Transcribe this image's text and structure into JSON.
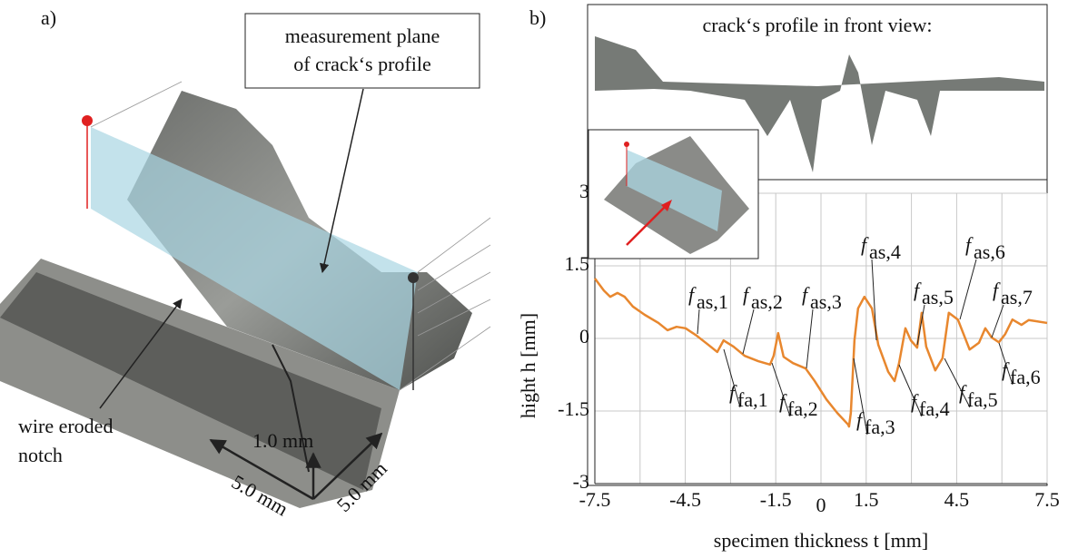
{
  "panel_a": {
    "label": "a)",
    "plane_note": [
      "measurement plane",
      "of crack‘s profile"
    ],
    "notch_note": [
      "wire eroded",
      "notch"
    ],
    "height_scale": "1.0 mm",
    "width_scale": "5.0 mm",
    "depth_scale": "5.0 mm"
  },
  "panel_b": {
    "label": "b)",
    "front_view_title": "crack‘s profile in front view:"
  },
  "chart_data": {
    "type": "line",
    "x_label": "specimen thickness t [mm]",
    "y_label": "hight h [mm]",
    "xlim": [
      -7.5,
      7.5
    ],
    "ylim": [
      -3,
      3
    ],
    "xticks": [
      -7.5,
      -4.5,
      -1.5,
      0,
      1.5,
      4.5,
      7.5
    ],
    "x_minor_grid": [
      -6,
      -3,
      3,
      6
    ],
    "yticks": [
      -3,
      -1.5,
      0,
      1.5,
      3
    ],
    "grid": true,
    "series": [
      {
        "name": "crack profile",
        "color": "#e8872e",
        "x": [
          -7.5,
          -7.2,
          -6.99,
          -6.75,
          -6.51,
          -6.24,
          -5.85,
          -5.39,
          -5.09,
          -4.79,
          -4.49,
          -4.13,
          -3.74,
          -3.44,
          -3.23,
          -2.9,
          -2.53,
          -2.08,
          -1.69,
          -1.57,
          -1.42,
          -1.24,
          -0.93,
          -0.51,
          -0.21,
          0.18,
          0.54,
          0.9,
          0.93,
          0.99,
          1.11,
          1.23,
          1.44,
          1.69,
          1.9,
          2.23,
          2.44,
          2.59,
          2.8,
          2.98,
          3.19,
          3.34,
          3.49,
          3.79,
          4.03,
          4.24,
          4.54,
          4.93,
          5.24,
          5.45,
          5.66,
          5.9,
          6.11,
          6.35,
          6.65,
          6.89,
          7.5
        ],
        "values": [
          1.24,
          0.99,
          0.86,
          0.94,
          0.86,
          0.66,
          0.49,
          0.32,
          0.17,
          0.24,
          0.21,
          0.06,
          -0.13,
          -0.28,
          -0.04,
          -0.17,
          -0.36,
          -0.47,
          -0.54,
          -0.36,
          0.11,
          -0.38,
          -0.51,
          -0.62,
          -0.88,
          -1.26,
          -1.54,
          -1.78,
          -1.82,
          -1.54,
          -0.04,
          0.62,
          0.86,
          0.62,
          -0.13,
          -0.69,
          -0.88,
          -0.51,
          0.21,
          -0.04,
          -0.19,
          0.53,
          -0.17,
          -0.66,
          -0.41,
          0.53,
          0.39,
          -0.23,
          -0.09,
          0.21,
          0.02,
          -0.08,
          0.09,
          0.39,
          0.28,
          0.38,
          0.32
        ]
      }
    ],
    "annotations": [
      {
        "symbol": "f",
        "subscript": "as,1"
      },
      {
        "symbol": "f",
        "subscript": "as,2"
      },
      {
        "symbol": "f",
        "subscript": "as,3"
      },
      {
        "symbol": "f",
        "subscript": "as,4"
      },
      {
        "symbol": "f",
        "subscript": "as,5"
      },
      {
        "symbol": "f",
        "subscript": "as,6"
      },
      {
        "symbol": "f",
        "subscript": "as,7"
      },
      {
        "symbol": "f",
        "subscript": "fa,1"
      },
      {
        "symbol": "f",
        "subscript": "fa,2"
      },
      {
        "symbol": "f",
        "subscript": "fa,3"
      },
      {
        "symbol": "f",
        "subscript": "fa,4"
      },
      {
        "symbol": "f",
        "subscript": "fa,5"
      },
      {
        "symbol": "f",
        "subscript": "fa,6"
      }
    ]
  }
}
